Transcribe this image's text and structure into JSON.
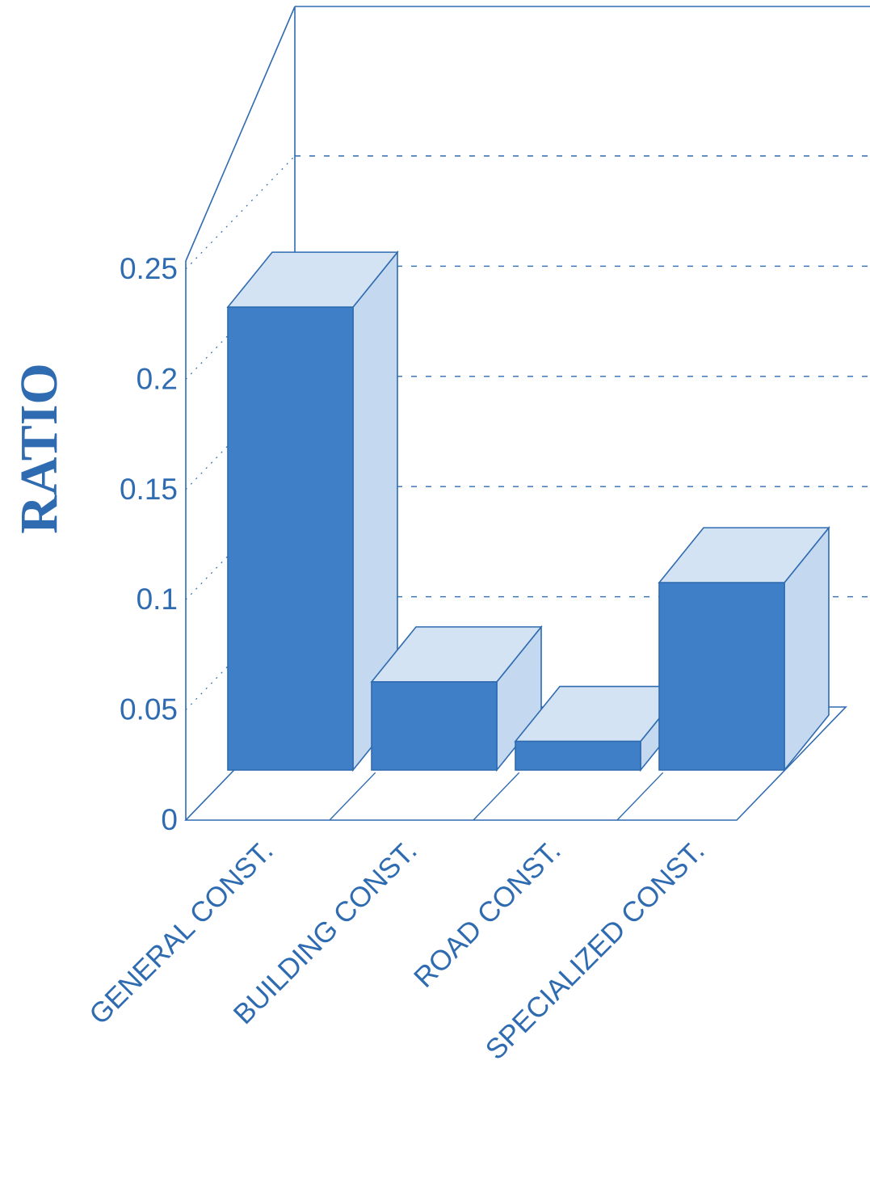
{
  "chart_data": {
    "type": "bar",
    "title": "",
    "xlabel": "",
    "ylabel": "RATIO",
    "ylim": [
      0,
      0.25
    ],
    "yticks": [
      0,
      0.05,
      0.1,
      0.15,
      0.2,
      0.25
    ],
    "ytick_labels": [
      "0",
      "0.05",
      "0.1",
      "0.15",
      "0.2",
      "0.25"
    ],
    "categories": [
      "GENERAL CONST.",
      "BUILDING CONST.",
      "ROAD CONST.",
      "SPECIALIZED CONST."
    ],
    "values": [
      0.21,
      0.04,
      0.013,
      0.085
    ],
    "grid": true,
    "style": "3d",
    "colors": {
      "bar_front": "#3e7fc7",
      "bar_top": "#d3e3f3",
      "bar_side": "#c4d9ef",
      "line": "#2f6bb0"
    }
  }
}
